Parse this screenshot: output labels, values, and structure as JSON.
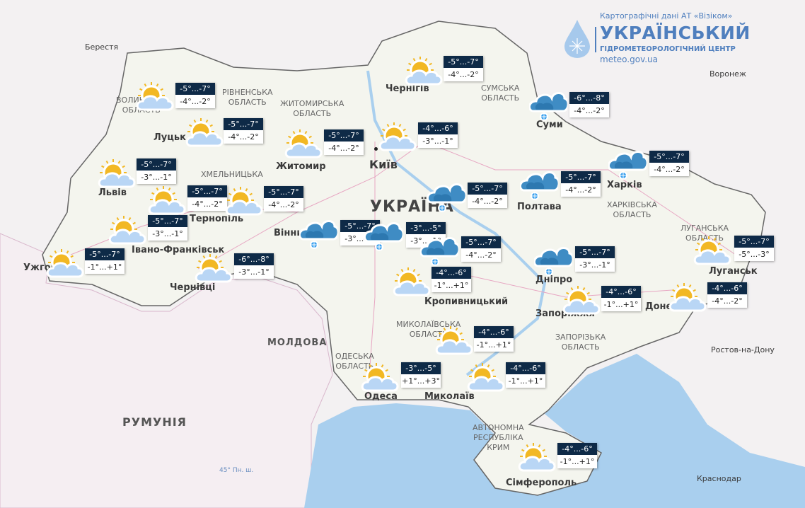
{
  "logo": {
    "credit": "Картографічні дані АТ «Візіком»",
    "title": "УКРАЇНСЬКИЙ",
    "subtitle": "ГІДРОМЕТЕОРОЛОГІЧНИЙ ЦЕНТР",
    "url": "meteo.gov.ua"
  },
  "colors": {
    "label_bg": "#0e2a47",
    "sea": "#a9cfee",
    "land": "#f4f5ee",
    "foreign": "#f3f1f2",
    "romania": "#f5eef2",
    "logo": "#4f7fbe"
  },
  "countries": {
    "ukraine": "УКРАЇНА",
    "moldova": "МОЛДОВА",
    "romania": "РУМУНІЯ"
  },
  "latitude_label": "45° Пн. ш.",
  "cities": {
    "kyiv": "Київ",
    "lutsk": "Луцьк",
    "lviv": "Львів",
    "ternopil": "Тернопіль",
    "ivano_frankivsk": "Івано-Франківськ",
    "uzhhorod": "Ужгород",
    "chernivtsi": "Чернівці",
    "zhytomyr": "Житомир",
    "vinnytsia": "Вінниця",
    "chernihiv": "Чернігів",
    "sumy": "Суми",
    "poltava": "Полтава",
    "kharkiv": "Харків",
    "dnipro": "Дніпро",
    "zaporizhzhia": "Запоріжжя",
    "donetsk": "Донецьк",
    "luhansk": "Луганськ",
    "kropyvnytskyi": "Кропивницький",
    "mykolaiv": "Миколаїв",
    "odesa": "Одеса",
    "simferopol": "Сімферополь",
    "berestia": "Берестя",
    "voronezh": "Воронеж",
    "rostov": "Ростов-на-Дону",
    "krasnodar": "Краснодар"
  },
  "regions": {
    "volyn": "ВОЛИНСЬКА\nОБЛАСТЬ",
    "rivne": "РІВНЕНСЬКА\nОБЛАСТЬ",
    "zhytomyr": "ЖИТОМИРСЬКА\nОБЛАСТЬ",
    "sumy": "СУМСЬКА\nОБЛАСТЬ",
    "kharkiv": "ХАРКІВСЬКА\nОБЛАСТЬ",
    "luhansk": "ЛУГАНСЬКА\nОБЛАСТЬ",
    "zaporizhzhia": "ЗАПОРІЗЬКА\nОБЛАСТЬ",
    "mykolaiv": "МИКОЛАЇВСЬКА\nОБЛАСТЬ",
    "odesa": "ОДЕСЬКА\nОБЛАСТЬ",
    "crimea": "АВТОНОМНА\nРЕСПУБЛІКА\nКРИМ",
    "khmelnytskyi": "ХМЕЛЬНИЦЬКА"
  },
  "forecasts": [
    {
      "place": "volyn",
      "icon": "partly-cloudy",
      "night": "-5°...-7°",
      "day": "-4°...-2°"
    },
    {
      "place": "rivne",
      "icon": "partly-cloudy",
      "night": "-5°...-7°",
      "day": "-4°...-2°"
    },
    {
      "place": "zhytomyr",
      "icon": "partly-cloudy",
      "night": "-5°...-7°",
      "day": "-4°...-2°"
    },
    {
      "place": "kyiv",
      "icon": "partly-cloudy",
      "night": "-4°...-6°",
      "day": "-3°...-1°"
    },
    {
      "place": "chernihiv",
      "icon": "partly-cloudy",
      "night": "-5°...-7°",
      "day": "-4°...-2°"
    },
    {
      "place": "sumy",
      "icon": "cloudy-snow",
      "night": "-6°...-8°",
      "day": "-4°...-2°"
    },
    {
      "place": "kharkiv",
      "icon": "cloudy-snow",
      "night": "-5°...-7°",
      "day": "-4°...-2°"
    },
    {
      "place": "poltava",
      "icon": "cloudy-snow",
      "night": "-5°...-7°",
      "day": "-4°...-2°"
    },
    {
      "place": "lviv",
      "icon": "partly-cloudy",
      "night": "-5°...-7°",
      "day": "-3°...-1°"
    },
    {
      "place": "ternopil",
      "icon": "partly-cloudy",
      "night": "-5°...-7°",
      "day": "-4°...-2°"
    },
    {
      "place": "khmelnytskyi",
      "icon": "partly-cloudy",
      "night": "-5°...-7°",
      "day": "-4°...-2°"
    },
    {
      "place": "ivano-frankivsk",
      "icon": "partly-cloudy",
      "night": "-5°...-7°",
      "day": "-3°...-1°"
    },
    {
      "place": "uzhhorod",
      "icon": "partly-cloudy",
      "night": "-5°...-7°",
      "day": "-1°...+1°"
    },
    {
      "place": "chernivtsi",
      "icon": "partly-cloudy",
      "night": "-6°...-8°",
      "day": "-3°...-1°"
    },
    {
      "place": "vinnytsia",
      "icon": "cloudy-snow",
      "night": "-5°...-7°",
      "day": "-3°...-1°"
    },
    {
      "place": "cherkasy-west",
      "icon": "cloudy-snow",
      "night": "-3°...-5°",
      "day": "-3°...-1°"
    },
    {
      "place": "cherkasy",
      "icon": "cloudy-snow",
      "night": "-5°...-7°",
      "day": "-4°...-2°"
    },
    {
      "place": "kremenchuk",
      "icon": "cloudy-snow",
      "night": "-5°...-7°",
      "day": "-4°...-2°"
    },
    {
      "place": "kropyvnytskyi",
      "icon": "partly-cloudy",
      "night": "-4°...-6°",
      "day": "-1°...+1°"
    },
    {
      "place": "dnipro",
      "icon": "cloudy-snow",
      "night": "-5°...-7°",
      "day": "-3°...-1°"
    },
    {
      "place": "luhansk",
      "icon": "partly-cloudy",
      "night": "-5°...-7°",
      "day": "-5°...-3°"
    },
    {
      "place": "zaporizhzhia",
      "icon": "partly-cloudy",
      "night": "-4°...-6°",
      "day": "-1°...+1°"
    },
    {
      "place": "donetsk",
      "icon": "partly-cloudy",
      "night": "-4°...-6°",
      "day": "-4°...-2°"
    },
    {
      "place": "mykolaiv",
      "icon": "partly-cloudy",
      "night": "-4°...-6°",
      "day": "-1°...+1°"
    },
    {
      "place": "odesa",
      "icon": "partly-cloudy",
      "night": "-3°...-5°",
      "day": "+1°...+3°"
    },
    {
      "place": "kherson",
      "icon": "partly-cloudy",
      "night": "-4°...-6°",
      "day": "-1°...+1°"
    },
    {
      "place": "crimea",
      "icon": "partly-cloudy",
      "night": "-4°...-6°",
      "day": "-1°...+1°"
    }
  ]
}
